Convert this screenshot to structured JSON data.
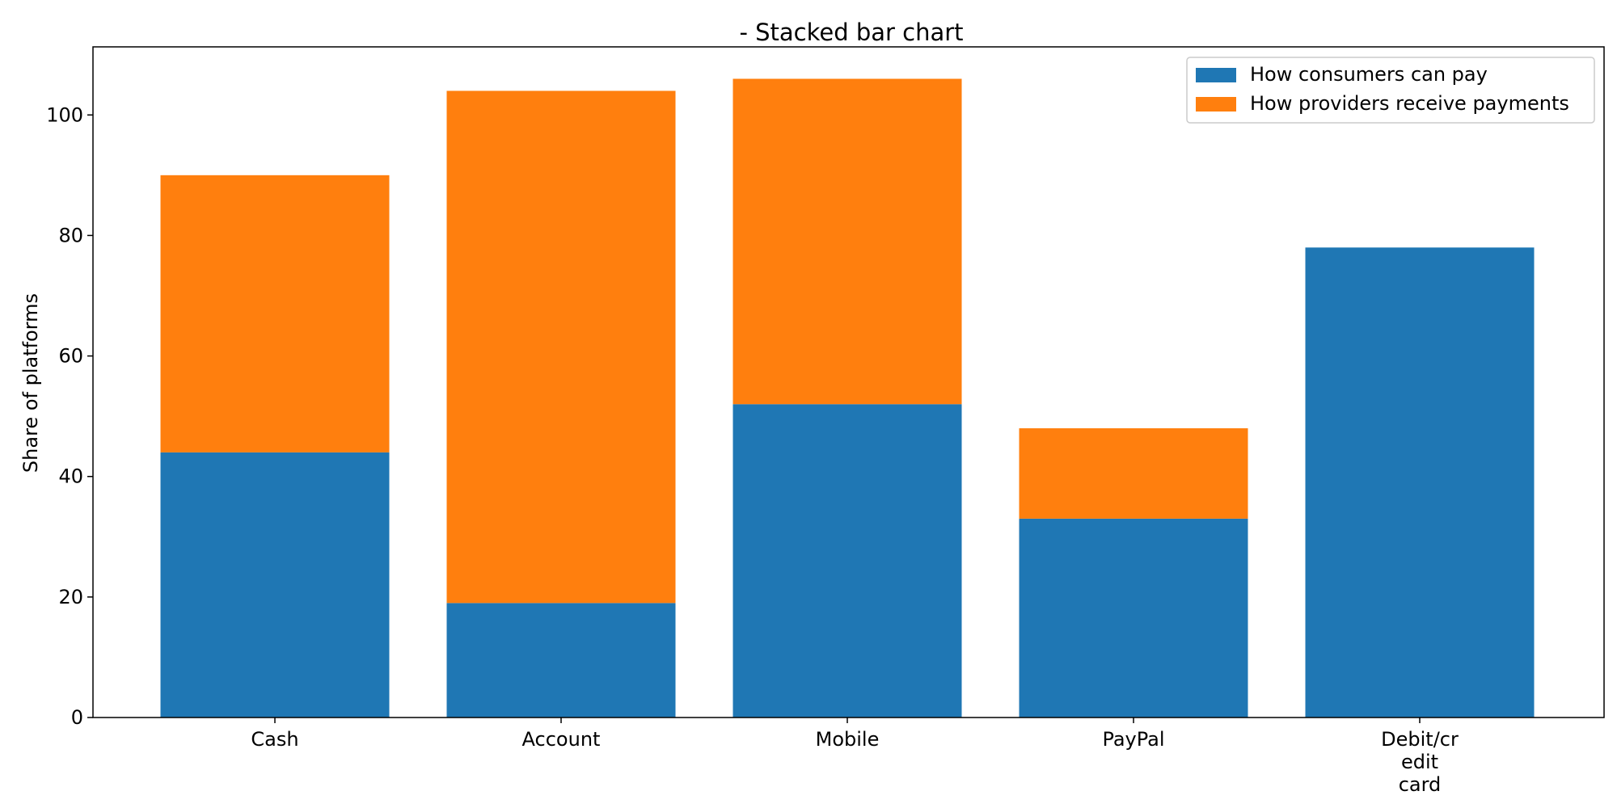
{
  "chart_data": {
    "type": "bar",
    "stacked": true,
    "title": "- Stacked bar chart",
    "xlabel": "",
    "ylabel": "Share of platforms",
    "categories": [
      "Cash",
      "Account",
      "Mobile",
      "PayPal",
      "Debit/cr\nedit\ncard"
    ],
    "series": [
      {
        "name": "How consumers can pay",
        "color": "#1f77b4",
        "values": [
          44,
          19,
          52,
          33,
          78
        ]
      },
      {
        "name": "How providers receive payments",
        "color": "#ff7f0e",
        "values": [
          46,
          85,
          54,
          15,
          0
        ]
      }
    ],
    "ylim": [
      0,
      111.3
    ],
    "yticks": [
      0,
      20,
      40,
      60,
      80,
      100
    ],
    "grid": false,
    "legend_position": "top-right"
  }
}
